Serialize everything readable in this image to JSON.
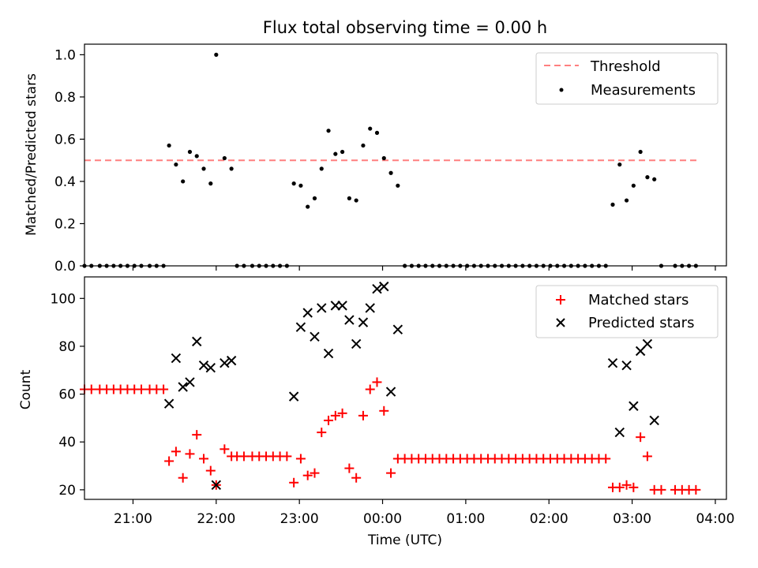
{
  "figure": {
    "title": "Flux total observing time = 0.00 h"
  },
  "chart_data": [
    {
      "type": "scatter",
      "title": "Flux total observing time = 0.00 h",
      "xlabel": "",
      "ylabel": "Matched/Predicted stars",
      "xlim": [
        "20:25",
        "04:08"
      ],
      "ylim": [
        0,
        1.05
      ],
      "yticks": [
        0.0,
        0.2,
        0.4,
        0.6,
        0.8,
        1.0
      ],
      "ytick_labels": [
        "0.0",
        "0.2",
        "0.4",
        "0.6",
        "0.8",
        "1.0"
      ],
      "grid": false,
      "legend": "upper-right",
      "threshold": {
        "name": "Threshold",
        "value": 0.5,
        "x_start": "20:25",
        "x_end": "03:47",
        "color": "#ff7f7f"
      },
      "series": [
        {
          "name": "Measurements",
          "color": "#000000",
          "points": [
            [
              "20:25",
              0
            ],
            [
              "20:30",
              0
            ],
            [
              "20:36",
              0
            ],
            [
              "20:41",
              0
            ],
            [
              "20:46",
              0
            ],
            [
              "20:51",
              0
            ],
            [
              "20:56",
              0
            ],
            [
              "21:01",
              0
            ],
            [
              "21:06",
              0
            ],
            [
              "21:12",
              0
            ],
            [
              "21:17",
              0
            ],
            [
              "21:22",
              0
            ],
            [
              "21:26",
              0.57
            ],
            [
              "21:31",
              0.48
            ],
            [
              "21:36",
              0.4
            ],
            [
              "21:41",
              0.54
            ],
            [
              "21:46",
              0.52
            ],
            [
              "21:51",
              0.46
            ],
            [
              "21:56",
              0.39
            ],
            [
              "22:00",
              1.0
            ],
            [
              "22:06",
              0.51
            ],
            [
              "22:11",
              0.46
            ],
            [
              "22:15",
              0
            ],
            [
              "22:20",
              0
            ],
            [
              "22:26",
              0
            ],
            [
              "22:31",
              0
            ],
            [
              "22:36",
              0
            ],
            [
              "22:41",
              0
            ],
            [
              "22:46",
              0
            ],
            [
              "22:51",
              0
            ],
            [
              "22:56",
              0.39
            ],
            [
              "23:01",
              0.38
            ],
            [
              "23:06",
              0.28
            ],
            [
              "23:11",
              0.32
            ],
            [
              "23:16",
              0.46
            ],
            [
              "23:21",
              0.64
            ],
            [
              "23:26",
              0.53
            ],
            [
              "23:31",
              0.54
            ],
            [
              "23:36",
              0.32
            ],
            [
              "23:41",
              0.31
            ],
            [
              "23:46",
              0.57
            ],
            [
              "23:51",
              0.65
            ],
            [
              "23:56",
              0.63
            ],
            [
              "00:01",
              0.51
            ],
            [
              "00:06",
              0.44
            ],
            [
              "00:11",
              0.38
            ],
            [
              "00:16",
              0
            ],
            [
              "00:21",
              0
            ],
            [
              "00:26",
              0
            ],
            [
              "00:31",
              0
            ],
            [
              "00:36",
              0
            ],
            [
              "00:41",
              0
            ],
            [
              "00:46",
              0
            ],
            [
              "00:51",
              0
            ],
            [
              "00:56",
              0
            ],
            [
              "01:01",
              0
            ],
            [
              "01:06",
              0
            ],
            [
              "01:11",
              0
            ],
            [
              "01:16",
              0
            ],
            [
              "01:21",
              0
            ],
            [
              "01:26",
              0
            ],
            [
              "01:31",
              0
            ],
            [
              "01:36",
              0
            ],
            [
              "01:41",
              0
            ],
            [
              "01:46",
              0
            ],
            [
              "01:51",
              0
            ],
            [
              "01:56",
              0
            ],
            [
              "02:01",
              0
            ],
            [
              "02:06",
              0
            ],
            [
              "02:11",
              0
            ],
            [
              "02:16",
              0
            ],
            [
              "02:21",
              0
            ],
            [
              "02:26",
              0
            ],
            [
              "02:31",
              0
            ],
            [
              "02:36",
              0
            ],
            [
              "02:41",
              0
            ],
            [
              "02:46",
              0.29
            ],
            [
              "02:51",
              0.48
            ],
            [
              "02:56",
              0.31
            ],
            [
              "03:01",
              0.38
            ],
            [
              "03:06",
              0.54
            ],
            [
              "03:11",
              0.42
            ],
            [
              "03:16",
              0.41
            ],
            [
              "03:21",
              0
            ],
            [
              "03:31",
              0
            ],
            [
              "03:36",
              0
            ],
            [
              "03:41",
              0
            ],
            [
              "03:46",
              0
            ]
          ]
        }
      ]
    },
    {
      "type": "scatter",
      "title": "",
      "xlabel": "Time (UTC)",
      "ylabel": "Count",
      "xlim": [
        "20:25",
        "04:08"
      ],
      "ylim": [
        16,
        109
      ],
      "yticks": [
        20,
        40,
        60,
        80,
        100
      ],
      "ytick_labels": [
        "20",
        "40",
        "60",
        "80",
        "100"
      ],
      "xticks": [
        "21:00",
        "22:00",
        "23:00",
        "00:00",
        "01:00",
        "02:00",
        "03:00",
        "04:00"
      ],
      "grid": false,
      "legend": "upper-right",
      "series": [
        {
          "name": "Matched stars",
          "marker": "+",
          "color": "#ff0000",
          "points": [
            [
              "20:25",
              62
            ],
            [
              "20:30",
              62
            ],
            [
              "20:36",
              62
            ],
            [
              "20:41",
              62
            ],
            [
              "20:46",
              62
            ],
            [
              "20:51",
              62
            ],
            [
              "20:56",
              62
            ],
            [
              "21:01",
              62
            ],
            [
              "21:06",
              62
            ],
            [
              "21:12",
              62
            ],
            [
              "21:17",
              62
            ],
            [
              "21:22",
              62
            ],
            [
              "21:26",
              32
            ],
            [
              "21:31",
              36
            ],
            [
              "21:36",
              25
            ],
            [
              "21:41",
              35
            ],
            [
              "21:46",
              43
            ],
            [
              "21:51",
              33
            ],
            [
              "21:56",
              28
            ],
            [
              "22:00",
              22
            ],
            [
              "22:06",
              37
            ],
            [
              "22:11",
              34
            ],
            [
              "22:15",
              34
            ],
            [
              "22:20",
              34
            ],
            [
              "22:26",
              34
            ],
            [
              "22:31",
              34
            ],
            [
              "22:36",
              34
            ],
            [
              "22:41",
              34
            ],
            [
              "22:46",
              34
            ],
            [
              "22:51",
              34
            ],
            [
              "22:56",
              23
            ],
            [
              "23:01",
              33
            ],
            [
              "23:06",
              26
            ],
            [
              "23:11",
              27
            ],
            [
              "23:16",
              44
            ],
            [
              "23:21",
              49
            ],
            [
              "23:26",
              51
            ],
            [
              "23:31",
              52
            ],
            [
              "23:36",
              29
            ],
            [
              "23:41",
              25
            ],
            [
              "23:46",
              51
            ],
            [
              "23:51",
              62
            ],
            [
              "23:56",
              65
            ],
            [
              "00:01",
              53
            ],
            [
              "00:06",
              27
            ],
            [
              "00:11",
              33
            ],
            [
              "00:16",
              33
            ],
            [
              "00:21",
              33
            ],
            [
              "00:26",
              33
            ],
            [
              "00:31",
              33
            ],
            [
              "00:36",
              33
            ],
            [
              "00:41",
              33
            ],
            [
              "00:46",
              33
            ],
            [
              "00:51",
              33
            ],
            [
              "00:56",
              33
            ],
            [
              "01:01",
              33
            ],
            [
              "01:06",
              33
            ],
            [
              "01:11",
              33
            ],
            [
              "01:16",
              33
            ],
            [
              "01:21",
              33
            ],
            [
              "01:26",
              33
            ],
            [
              "01:31",
              33
            ],
            [
              "01:36",
              33
            ],
            [
              "01:41",
              33
            ],
            [
              "01:46",
              33
            ],
            [
              "01:51",
              33
            ],
            [
              "01:56",
              33
            ],
            [
              "02:01",
              33
            ],
            [
              "02:06",
              33
            ],
            [
              "02:11",
              33
            ],
            [
              "02:16",
              33
            ],
            [
              "02:21",
              33
            ],
            [
              "02:26",
              33
            ],
            [
              "02:31",
              33
            ],
            [
              "02:36",
              33
            ],
            [
              "02:41",
              33
            ],
            [
              "02:46",
              21
            ],
            [
              "02:51",
              21
            ],
            [
              "02:56",
              22
            ],
            [
              "03:01",
              21
            ],
            [
              "03:06",
              42
            ],
            [
              "03:11",
              34
            ],
            [
              "03:16",
              20
            ],
            [
              "03:21",
              20
            ],
            [
              "03:31",
              20
            ],
            [
              "03:36",
              20
            ],
            [
              "03:41",
              20
            ],
            [
              "03:46",
              20
            ]
          ]
        },
        {
          "name": "Predicted stars",
          "marker": "x",
          "color": "#000000",
          "points": [
            [
              "21:26",
              56
            ],
            [
              "21:31",
              75
            ],
            [
              "21:36",
              63
            ],
            [
              "21:41",
              65
            ],
            [
              "21:46",
              82
            ],
            [
              "21:51",
              72
            ],
            [
              "21:56",
              71
            ],
            [
              "22:00",
              22
            ],
            [
              "22:06",
              73
            ],
            [
              "22:11",
              74
            ],
            [
              "22:56",
              59
            ],
            [
              "23:01",
              88
            ],
            [
              "23:06",
              94
            ],
            [
              "23:11",
              84
            ],
            [
              "23:16",
              96
            ],
            [
              "23:21",
              77
            ],
            [
              "23:26",
              97
            ],
            [
              "23:31",
              97
            ],
            [
              "23:36",
              91
            ],
            [
              "23:41",
              81
            ],
            [
              "23:46",
              90
            ],
            [
              "23:51",
              96
            ],
            [
              "23:56",
              104
            ],
            [
              "00:01",
              105
            ],
            [
              "00:06",
              61
            ],
            [
              "00:11",
              87
            ],
            [
              "02:46",
              73
            ],
            [
              "02:51",
              44
            ],
            [
              "02:56",
              72
            ],
            [
              "03:01",
              55
            ],
            [
              "03:06",
              78
            ],
            [
              "03:11",
              81
            ],
            [
              "03:16",
              49
            ]
          ]
        }
      ]
    }
  ]
}
